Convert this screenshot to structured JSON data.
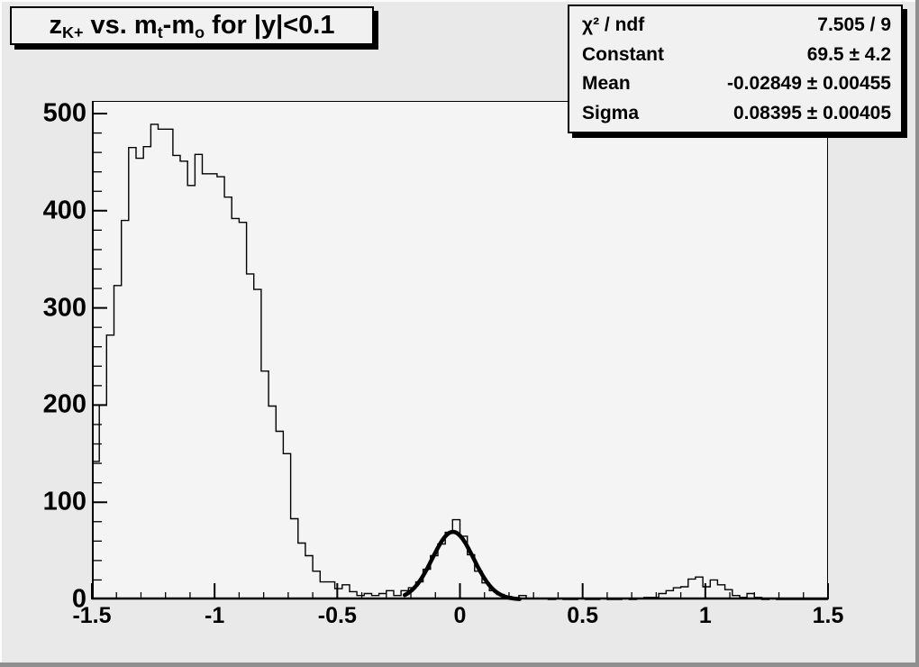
{
  "title": {
    "plain": "z_{K+} vs. m_t-m_o for |y|<0.1",
    "segments": [
      {
        "text": "z"
      },
      {
        "text": "K+",
        "sub": true
      },
      {
        "text": " vs. m"
      },
      {
        "text": "t",
        "sub": true
      },
      {
        "text": "-m"
      },
      {
        "text": "o",
        "sub": true
      },
      {
        "text": " for |y|<0.1"
      }
    ]
  },
  "stats_box": {
    "rows": [
      {
        "label": "χ² / ndf",
        "value": "7.505 / 9"
      },
      {
        "label": "Constant",
        "value": "69.5 ± 4.2"
      },
      {
        "label": "Mean",
        "value": "-0.02849 ± 0.00455"
      },
      {
        "label": "Sigma",
        "value": "0.08395 ± 0.00405"
      }
    ]
  },
  "colors": {
    "canvas_bg": "#e9e9e9",
    "frame_bg": "#f4f4f4",
    "pave_bg": "#f1f1f1",
    "line": "#000000",
    "bevel_light": "#fbfbfb",
    "bevel_dark": "#8f8f8f"
  },
  "chart_data": {
    "type": "bar",
    "style": "step-histogram",
    "title": "z_{K+} vs. m_t-m_o for |y|<0.1",
    "xlabel": "",
    "ylabel": "",
    "xlim": [
      -1.5,
      1.5
    ],
    "ylim": [
      0,
      513
    ],
    "grid": false,
    "bin_start": -1.5,
    "bin_width": 0.03,
    "n_bins": 100,
    "values": [
      142,
      200,
      272,
      323,
      390,
      465,
      454,
      466,
      489,
      484,
      484,
      457,
      451,
      426,
      458,
      438,
      438,
      435,
      414,
      392,
      388,
      335,
      319,
      235,
      199,
      173,
      150,
      83,
      58,
      45,
      29,
      18,
      18,
      11,
      15,
      8,
      4,
      6,
      4,
      6,
      9,
      4,
      9,
      12,
      18,
      31,
      45,
      57,
      69,
      82,
      65,
      46,
      29,
      17,
      9,
      5,
      3,
      1,
      4,
      1,
      1,
      1,
      0,
      1,
      0,
      0,
      1,
      0,
      0,
      1,
      0,
      0,
      1,
      0,
      1,
      2,
      2,
      6,
      9,
      12,
      13,
      21,
      23,
      13,
      20,
      15,
      10,
      4,
      2,
      6,
      2,
      0,
      1,
      0,
      0,
      0,
      0,
      0,
      0,
      0
    ],
    "x_ticks": {
      "major_values": [
        -1.5,
        -1,
        -0.5,
        0,
        0.5,
        1,
        1.5
      ],
      "major_labels": [
        "-1.5",
        "-1",
        "-0.5",
        "0",
        "0.5",
        "1",
        "1.5"
      ],
      "minor_step": 0.1
    },
    "y_ticks": {
      "major_values": [
        0,
        100,
        200,
        300,
        400,
        500
      ],
      "major_labels": [
        "0",
        "100",
        "200",
        "300",
        "400",
        "500"
      ],
      "minor_step": 20
    },
    "fit": {
      "type": "gaussian",
      "constant": 69.5,
      "mean": -0.02849,
      "sigma": 0.08395,
      "draw_range": [
        -0.225,
        0.245
      ]
    },
    "legend_position": "none"
  }
}
